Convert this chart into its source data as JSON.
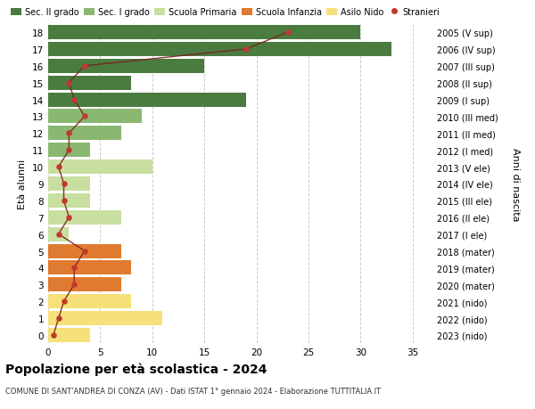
{
  "ages": [
    0,
    1,
    2,
    3,
    4,
    5,
    6,
    7,
    8,
    9,
    10,
    11,
    12,
    13,
    14,
    15,
    16,
    17,
    18
  ],
  "bar_values": [
    4,
    11,
    8,
    7,
    8,
    7,
    2,
    7,
    4,
    4,
    10,
    4,
    7,
    9,
    19,
    8,
    15,
    33,
    30
  ],
  "bar_colors": [
    "#f5e07a",
    "#f5e07a",
    "#f5e07a",
    "#e07a30",
    "#e07a30",
    "#e07a30",
    "#c8dfa0",
    "#c8dfa0",
    "#c8dfa0",
    "#c8dfa0",
    "#c8dfa0",
    "#8ab870",
    "#8ab870",
    "#8ab870",
    "#4a7c40",
    "#4a7c40",
    "#4a7c40",
    "#4a7c40",
    "#4a7c40"
  ],
  "stranieri_values": [
    0.5,
    1.0,
    1.5,
    2.5,
    2.5,
    3.5,
    1.0,
    2.0,
    1.5,
    1.5,
    1.0,
    2.0,
    2.0,
    3.5,
    2.5,
    2.0,
    3.5,
    19.0,
    23.0
  ],
  "right_labels": [
    "2023 (nido)",
    "2022 (nido)",
    "2021 (nido)",
    "2020 (mater)",
    "2019 (mater)",
    "2018 (mater)",
    "2017 (I ele)",
    "2016 (II ele)",
    "2015 (III ele)",
    "2014 (IV ele)",
    "2013 (V ele)",
    "2012 (I med)",
    "2011 (II med)",
    "2010 (III med)",
    "2009 (I sup)",
    "2008 (II sup)",
    "2007 (III sup)",
    "2006 (IV sup)",
    "2005 (V sup)"
  ],
  "ylabel_left": "Età alunni",
  "ylabel_right": "Anni di nascita",
  "title": "Popolazione per età scolastica - 2024",
  "subtitle": "COMUNE DI SANT'ANDREA DI CONZA (AV) - Dati ISTAT 1° gennaio 2024 - Elaborazione TUTTITALIA.IT",
  "legend_labels": [
    "Sec. II grado",
    "Sec. I grado",
    "Scuola Primaria",
    "Scuola Infanzia",
    "Asilo Nido",
    "Stranieri"
  ],
  "legend_colors": [
    "#4a7c40",
    "#8ab870",
    "#c8dfa0",
    "#e07a30",
    "#f5e07a",
    "#c0392b"
  ],
  "xlim": [
    0,
    37
  ],
  "ylim": [
    -0.5,
    18.5
  ],
  "background_color": "#ffffff",
  "grid_color": "#cccccc",
  "stranieri_color": "#c0392b",
  "stranieri_line_color": "#7a2020"
}
